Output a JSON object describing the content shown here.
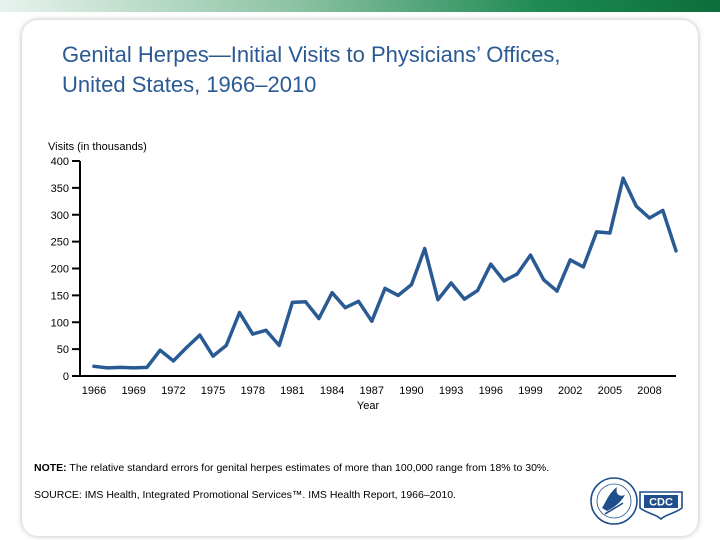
{
  "slide": {
    "title_line1": "Genital Herpes—Initial Visits to Physicians’ Offices,",
    "title_line2": "United States, 1966–2010",
    "note_label": "NOTE:",
    "note_text": " The relative standard errors for genital herpes estimates of more than 100,000 range from 18% to 30%.",
    "source": "SOURCE: IMS Health, Integrated Promotional Services™. IMS Health Report, 1966–2010.",
    "logo_text": "CDC",
    "colors": {
      "accent": "#2a5a93",
      "line": "#2a5a93",
      "band": "#0c6e3a"
    }
  },
  "chart_data": {
    "type": "line",
    "ylabel": "Visits (in thousands)",
    "xlabel": "Year",
    "ylim": [
      0,
      400
    ],
    "xlim": [
      1966,
      2010
    ],
    "yticks": [
      0,
      50,
      100,
      150,
      200,
      250,
      300,
      350,
      400
    ],
    "xtick_labels": [
      "1966",
      "1969",
      "1972",
      "1975",
      "1978",
      "1981",
      "1984",
      "1987",
      "1990",
      "1993",
      "1996",
      "1999",
      "2002",
      "2005",
      "2008"
    ],
    "series": [
      {
        "name": "Initial visits",
        "x": [
          1966,
          1967,
          1968,
          1969,
          1970,
          1971,
          1972,
          1973,
          1974,
          1975,
          1976,
          1977,
          1978,
          1979,
          1980,
          1981,
          1982,
          1983,
          1984,
          1985,
          1986,
          1987,
          1988,
          1989,
          1990,
          1991,
          1992,
          1993,
          1994,
          1995,
          1996,
          1997,
          1998,
          1999,
          2000,
          2001,
          2002,
          2003,
          2004,
          2005,
          2006,
          2007,
          2008,
          2009,
          2010
        ],
        "values": [
          18,
          15,
          16,
          15,
          16,
          48,
          28,
          53,
          76,
          37,
          57,
          118,
          78,
          85,
          57,
          137,
          138,
          107,
          155,
          127,
          139,
          102,
          163,
          150,
          170,
          237,
          142,
          173,
          143,
          159,
          208,
          177,
          190,
          225,
          179,
          158,
          216,
          203,
          268,
          266,
          368,
          316,
          294,
          308,
          233
        ]
      }
    ]
  }
}
